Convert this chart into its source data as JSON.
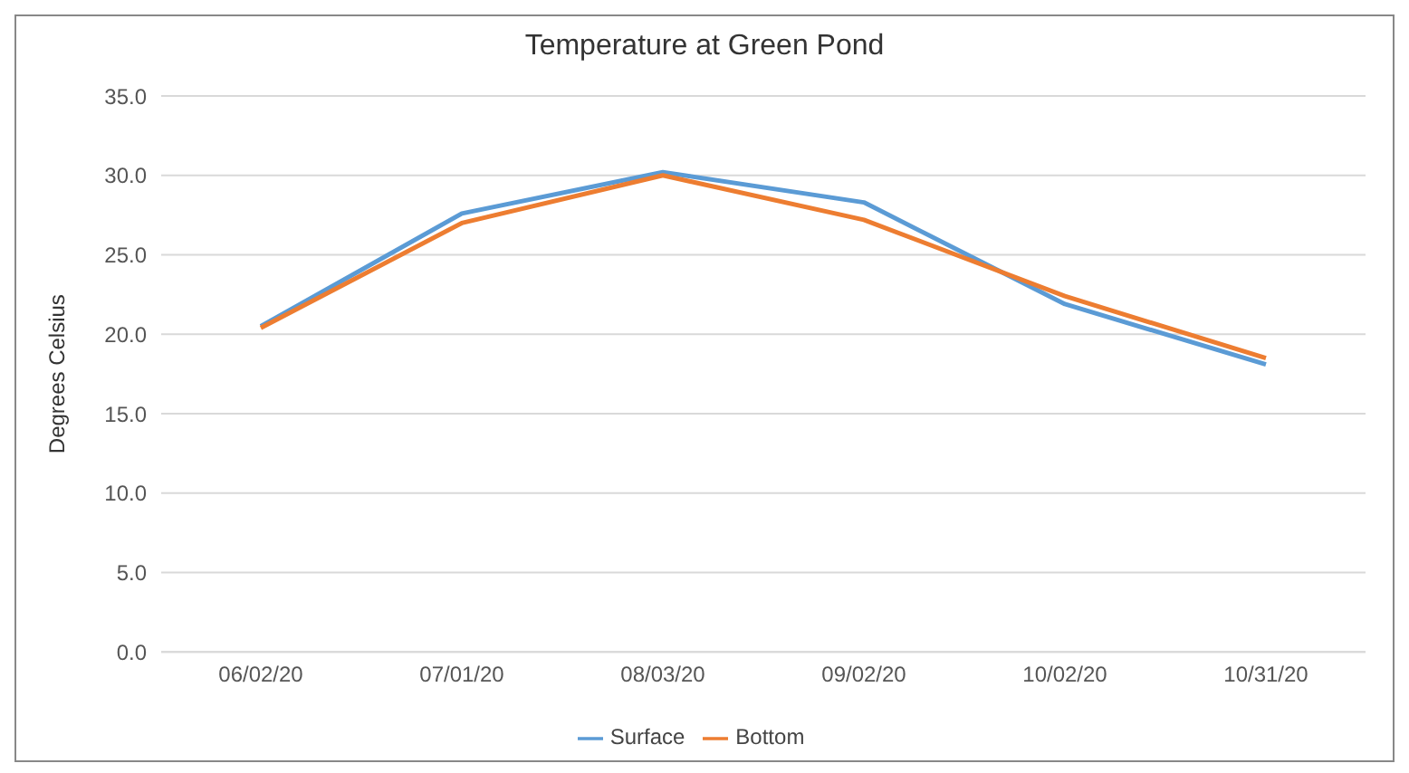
{
  "chart_data": {
    "type": "line",
    "title": "Temperature at Green Pond",
    "ylabel": "Degrees Celsius",
    "categories": [
      "06/02/20",
      "07/01/20",
      "08/03/20",
      "09/02/20",
      "10/02/20",
      "10/31/20"
    ],
    "series": [
      {
        "name": "Surface",
        "color": "#5b9bd5",
        "values": [
          20.5,
          27.6,
          30.2,
          28.3,
          21.9,
          18.1
        ]
      },
      {
        "name": "Bottom",
        "color": "#ed7d31",
        "values": [
          20.4,
          27.0,
          30.0,
          27.2,
          22.4,
          18.5
        ]
      }
    ],
    "ylim": [
      0,
      35
    ],
    "yticks": [
      {
        "value": 0,
        "label": "0.0"
      },
      {
        "value": 5,
        "label": "5.0"
      },
      {
        "value": 10,
        "label": "10.0"
      },
      {
        "value": 15,
        "label": "15.0"
      },
      {
        "value": 20,
        "label": "20.0"
      },
      {
        "value": 25,
        "label": "25.0"
      },
      {
        "value": 30,
        "label": "30.0"
      },
      {
        "value": 35,
        "label": "35.0"
      }
    ],
    "grid": "y",
    "legend": "bottom",
    "marker": "none",
    "line_style": "solid"
  }
}
